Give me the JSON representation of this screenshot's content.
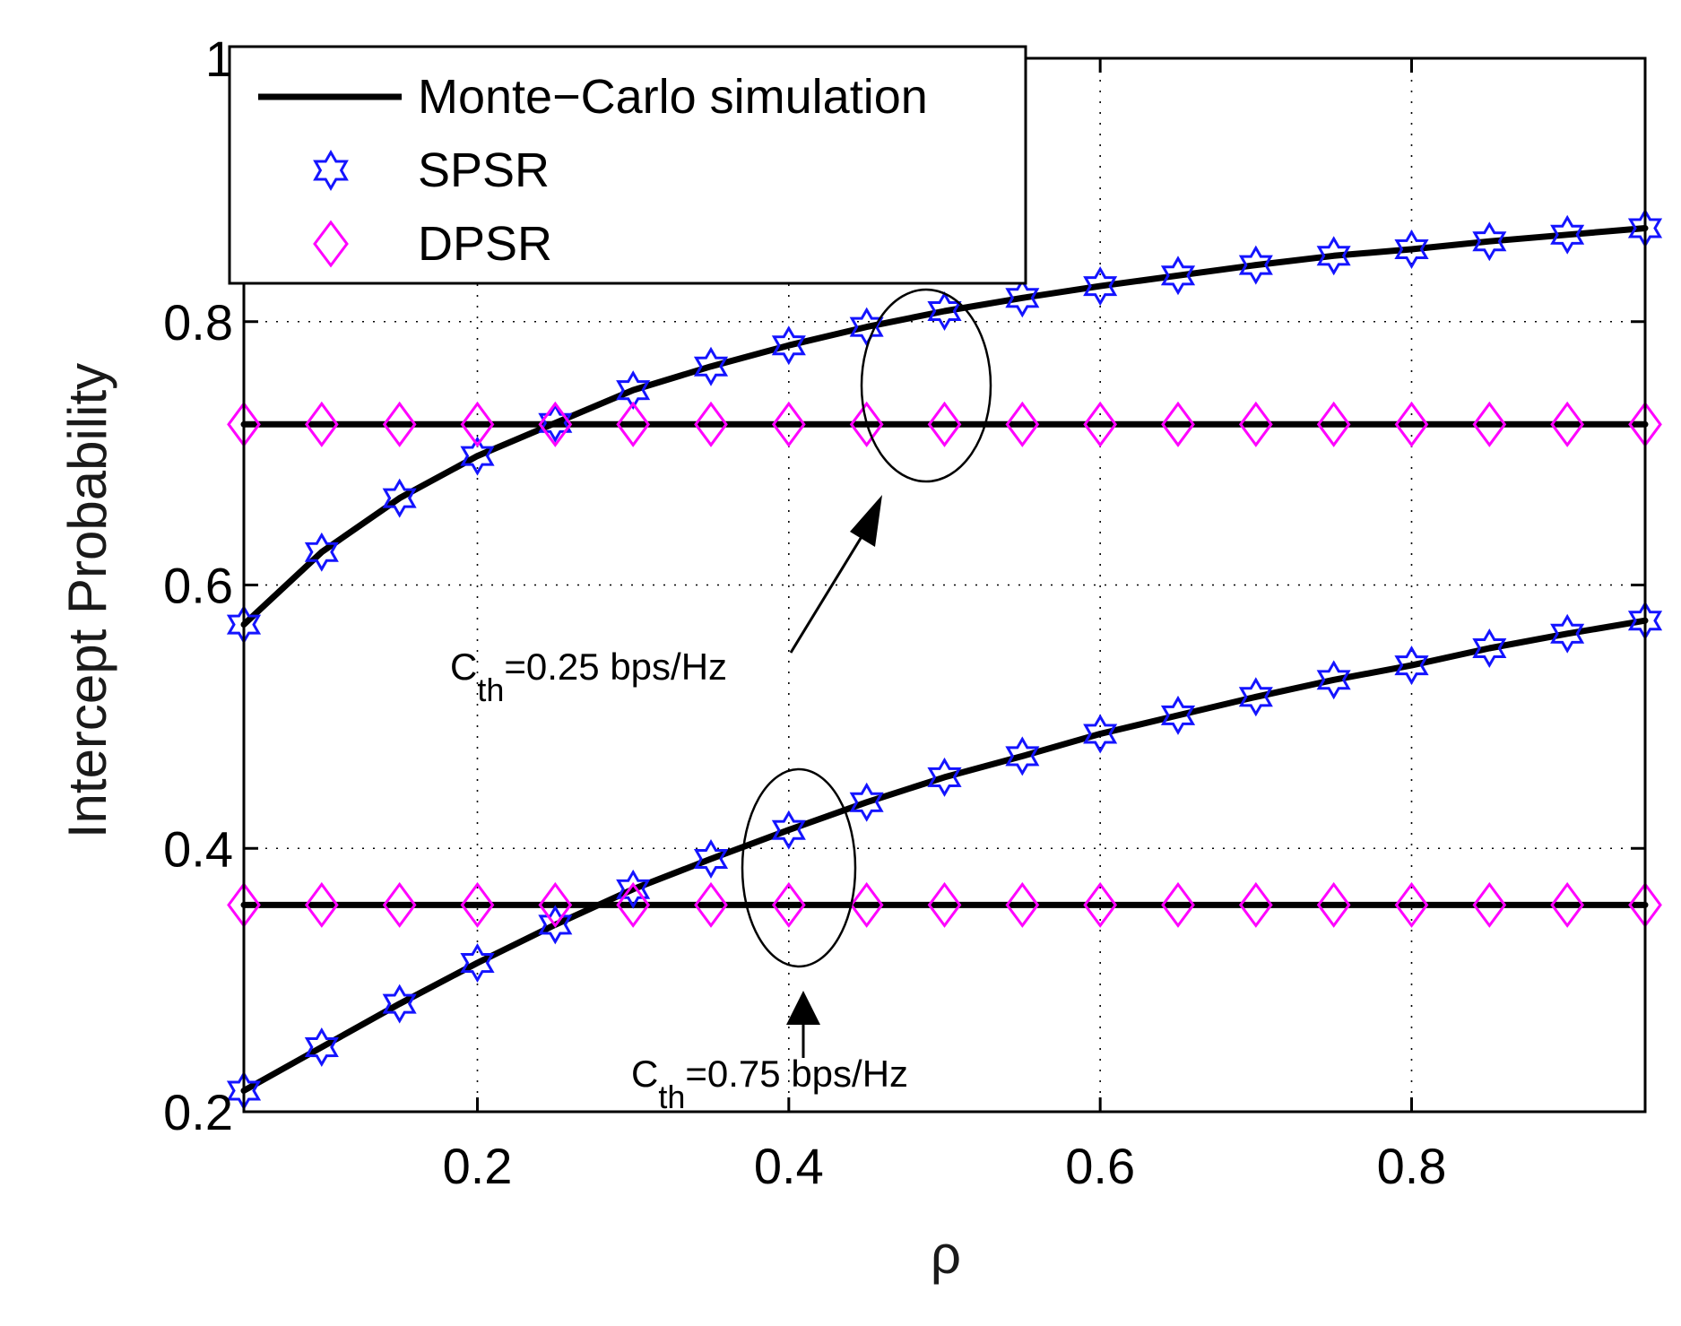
{
  "chart_data": {
    "type": "line",
    "title": "",
    "xlabel": "ρ",
    "ylabel": "Intercept Probability",
    "xlim": [
      0.05,
      0.95
    ],
    "ylim": [
      0.2,
      1.0
    ],
    "grid": true,
    "x_ticks": [
      "0.2",
      "0.4",
      "0.6",
      "0.8"
    ],
    "y_ticks": [
      "0.2",
      "0.4",
      "0.6",
      "0.8",
      "1"
    ],
    "legend_position": "top-left",
    "legend": [
      {
        "label": "Monte−Carlo simulation",
        "marker": "line",
        "color": "#000000"
      },
      {
        "label": "SPSR",
        "marker": "hexagram",
        "color": "#1414ff"
      },
      {
        "label": "DPSR",
        "marker": "diamond",
        "color": "#ff00ff"
      }
    ],
    "x": [
      0.05,
      0.1,
      0.15,
      0.2,
      0.25,
      0.3,
      0.35,
      0.4,
      0.45,
      0.5,
      0.55,
      0.6,
      0.65,
      0.7,
      0.75,
      0.8,
      0.85,
      0.9,
      0.95
    ],
    "series": [
      {
        "name": "SPSR, C_th=0.25 bps/Hz",
        "marker": "hexagram",
        "values": [
          0.57,
          0.625,
          0.666,
          0.698,
          0.723,
          0.748,
          0.766,
          0.782,
          0.796,
          0.808,
          0.818,
          0.827,
          0.835,
          0.843,
          0.85,
          0.855,
          0.861,
          0.866,
          0.871
        ]
      },
      {
        "name": "DPSR, C_th=0.25 bps/Hz",
        "marker": "diamond",
        "values": [
          0.722,
          0.722,
          0.722,
          0.722,
          0.722,
          0.722,
          0.722,
          0.722,
          0.722,
          0.722,
          0.722,
          0.722,
          0.722,
          0.722,
          0.722,
          0.722,
          0.722,
          0.722,
          0.722
        ]
      },
      {
        "name": "SPSR, C_th=0.75 bps/Hz",
        "marker": "hexagram",
        "values": [
          0.216,
          0.249,
          0.282,
          0.313,
          0.342,
          0.369,
          0.392,
          0.414,
          0.435,
          0.454,
          0.47,
          0.487,
          0.501,
          0.515,
          0.528,
          0.539,
          0.552,
          0.563,
          0.573
        ]
      },
      {
        "name": "DPSR, C_th=0.75 bps/Hz",
        "marker": "diamond",
        "values": [
          0.357,
          0.357,
          0.357,
          0.357,
          0.357,
          0.357,
          0.357,
          0.357,
          0.357,
          0.357,
          0.357,
          0.357,
          0.357,
          0.357,
          0.357,
          0.357,
          0.357,
          0.357,
          0.357
        ]
      }
    ],
    "annotations": [
      {
        "main": "C",
        "sub": "th",
        "rest": "=0.25 bps/Hz",
        "points_to": {
          "x": 0.48,
          "y": 0.75
        }
      },
      {
        "main": "C",
        "sub": "th",
        "rest": "=0.75 bps/Hz",
        "points_to": {
          "x": 0.4,
          "y": 0.39
        }
      }
    ]
  }
}
